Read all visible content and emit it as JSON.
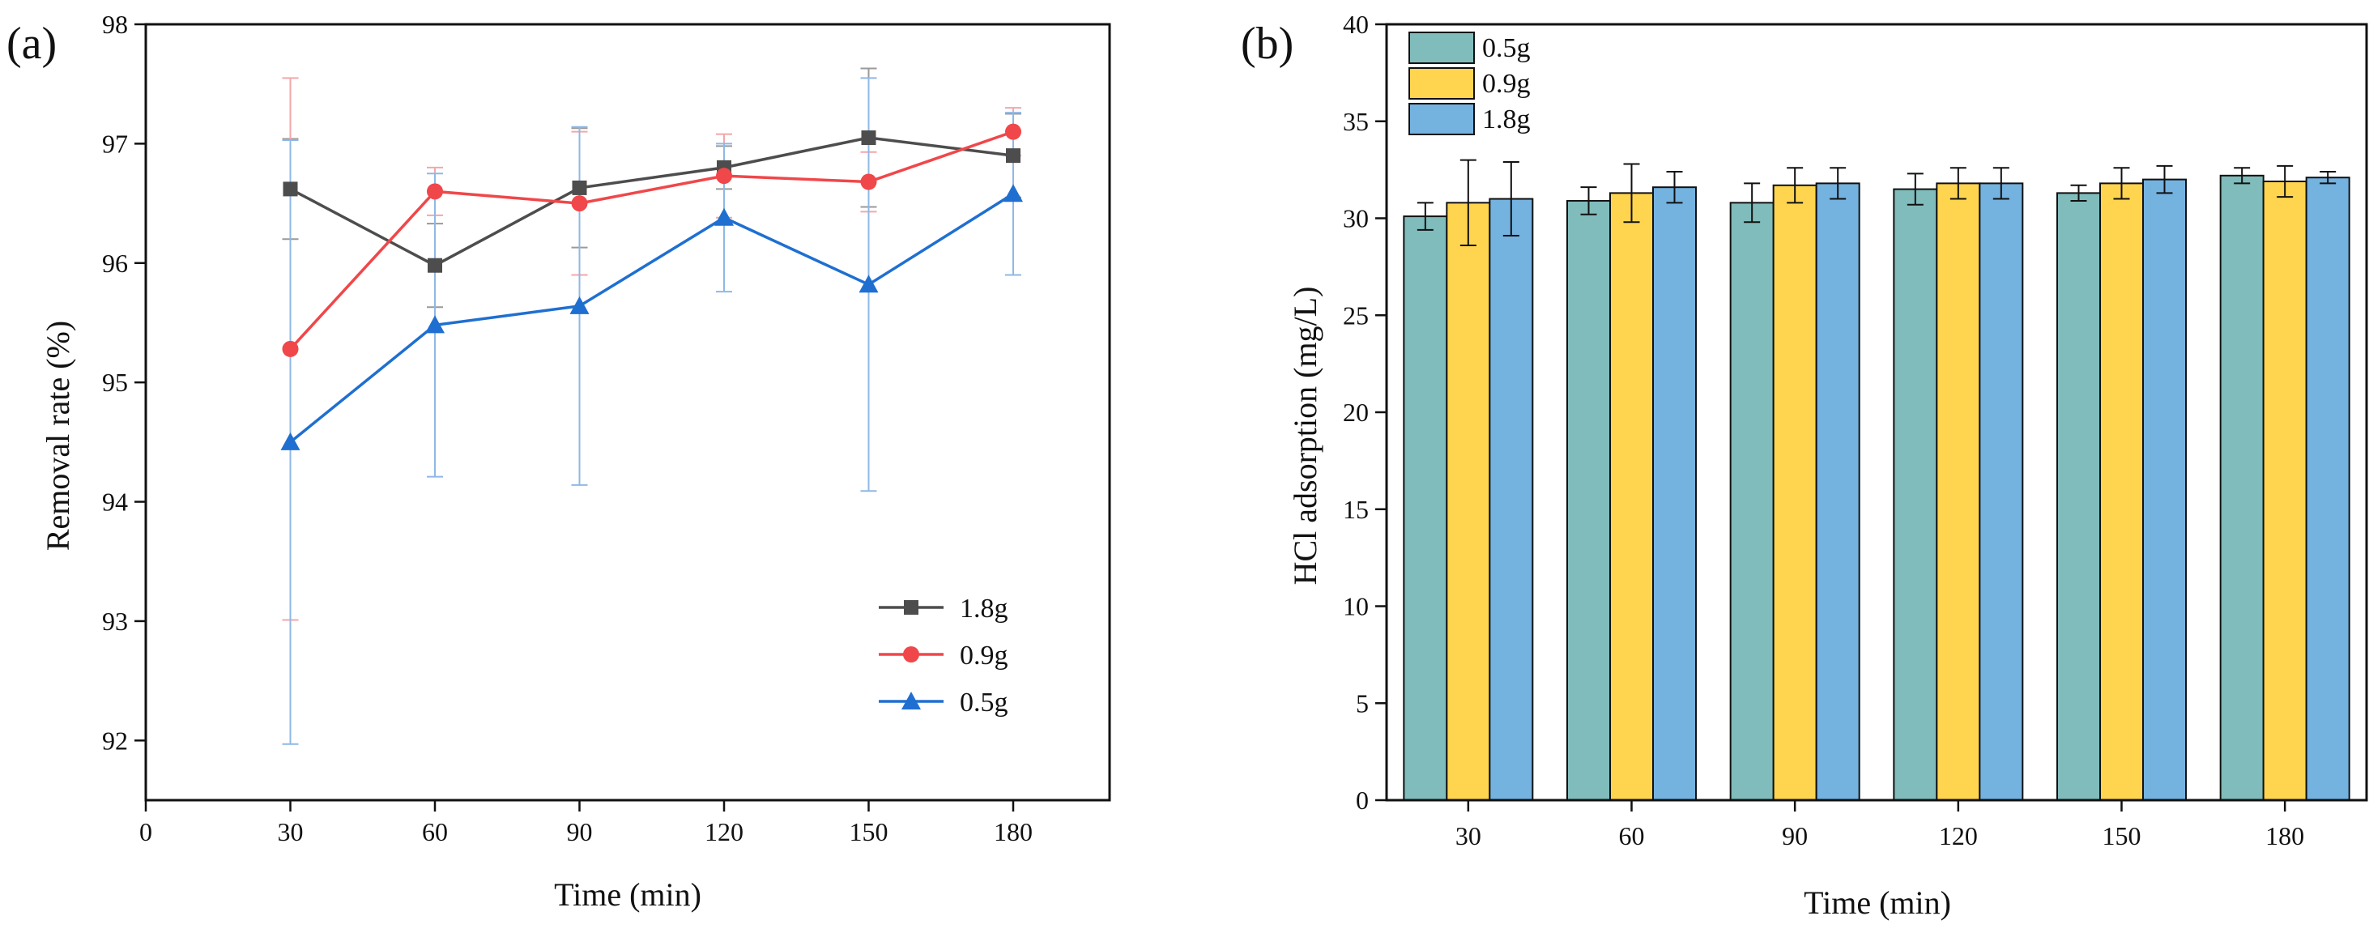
{
  "colors": {
    "series_1_8g": "#4d4d4d",
    "series_0_9g": "#f0474a",
    "series_0_5g": "#1f6fd1",
    "err_1_8g": "#9a9a9a",
    "err_0_9g": "#f4a6aa",
    "err_0_5g": "#8fb8e6",
    "bar_0_5g": "#80bcbb",
    "bar_0_9g": "#ffd54f",
    "bar_1_8g": "#74b2e0"
  },
  "chart_data": [
    {
      "panel_label": "(a)",
      "type": "line",
      "xlabel": "Time (min)",
      "ylabel": "Removal rate (%)",
      "xlim": [
        0,
        200
      ],
      "ylim": [
        91.5,
        98
      ],
      "xticks": [
        "0",
        "30",
        "60",
        "90",
        "120",
        "150",
        "180"
      ],
      "xtick_values": [
        0,
        30,
        60,
        90,
        120,
        150,
        180
      ],
      "yticks": [
        "92",
        "93",
        "94",
        "95",
        "96",
        "97",
        "98"
      ],
      "ytick_values": [
        92,
        93,
        94,
        95,
        96,
        97,
        98
      ],
      "legend_position": "bottom-right",
      "x": [
        30,
        60,
        90,
        120,
        150,
        180
      ],
      "series": [
        {
          "name": "1.8g",
          "marker": "square",
          "color_key": "series_1_8g",
          "err_color_key": "err_1_8g",
          "values": [
            96.62,
            95.98,
            96.63,
            96.8,
            97.05,
            96.9
          ],
          "errors": [
            0.42,
            0.35,
            0.5,
            0.18,
            0.58,
            0.35
          ]
        },
        {
          "name": "0.9g",
          "marker": "circle",
          "color_key": "series_0_9g",
          "err_color_key": "err_0_9g",
          "values": [
            95.28,
            96.6,
            96.5,
            96.73,
            96.68,
            97.1
          ],
          "errors": [
            2.27,
            0.2,
            0.6,
            0.35,
            0.25,
            0.2
          ]
        },
        {
          "name": "0.5g",
          "marker": "triangle",
          "color_key": "series_0_5g",
          "err_color_key": "err_0_5g",
          "values": [
            94.5,
            95.48,
            95.64,
            96.38,
            95.82,
            96.58
          ],
          "errors": [
            2.53,
            1.27,
            1.5,
            0.62,
            1.73,
            0.68
          ]
        }
      ]
    },
    {
      "panel_label": "(b)",
      "type": "bar",
      "xlabel": "Time (min)",
      "ylabel": "HCl adsorption (mg/L)",
      "ylim": [
        0,
        40
      ],
      "yticks": [
        "0",
        "5",
        "10",
        "15",
        "20",
        "25",
        "30",
        "35",
        "40"
      ],
      "ytick_values": [
        0,
        5,
        10,
        15,
        20,
        25,
        30,
        35,
        40
      ],
      "categories": [
        "30",
        "60",
        "90",
        "120",
        "150",
        "180"
      ],
      "legend_position": "top-left",
      "series": [
        {
          "name": "0.5g",
          "color_key": "bar_0_5g",
          "values": [
            30.1,
            30.9,
            30.8,
            31.5,
            31.3,
            32.2
          ],
          "errors": [
            0.7,
            0.7,
            1.0,
            0.8,
            0.4,
            0.4
          ]
        },
        {
          "name": "0.9g",
          "color_key": "bar_0_9g",
          "values": [
            30.8,
            31.3,
            31.7,
            31.8,
            31.8,
            31.9
          ],
          "errors": [
            2.2,
            1.5,
            0.9,
            0.8,
            0.8,
            0.8
          ]
        },
        {
          "name": "1.8g",
          "color_key": "bar_1_8g",
          "values": [
            31.0,
            31.6,
            31.8,
            31.8,
            32.0,
            32.1
          ],
          "errors": [
            1.9,
            0.8,
            0.8,
            0.8,
            0.7,
            0.3
          ]
        }
      ]
    }
  ]
}
